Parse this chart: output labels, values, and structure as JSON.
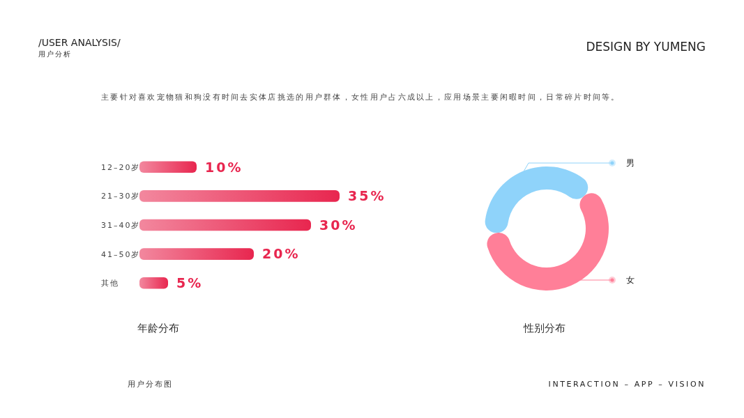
{
  "chart_data": [
    {
      "type": "bar",
      "orientation": "horizontal",
      "title": "年龄分布",
      "categories": [
        "12–20岁",
        "21–30岁",
        "31–40岁",
        "41–50岁",
        "其他"
      ],
      "values": [
        10,
        35,
        30,
        20,
        5
      ],
      "value_labels": [
        "10%",
        "35%",
        "30%",
        "20%",
        "5%"
      ],
      "color": "#e8264f",
      "annotations": [
        "/USER ANALYSIS/",
        "用户分析",
        "DESIGN BY YUMENG",
        "主要针对喜欢宠物猫和狗没有时间去实体店挑选的用户群体，女性用户占六成以上，应用场景主要闲暇时间，日常碎片时间等。",
        "用户分布图",
        "INTERACTION – APP – VISION"
      ]
    },
    {
      "type": "donut",
      "title": "性别分布",
      "legend": "right",
      "categories": [
        "男",
        "女"
      ],
      "values": [
        40,
        60
      ],
      "colors": [
        "#8fd3fa",
        "#ff7f98"
      ]
    }
  ]
}
